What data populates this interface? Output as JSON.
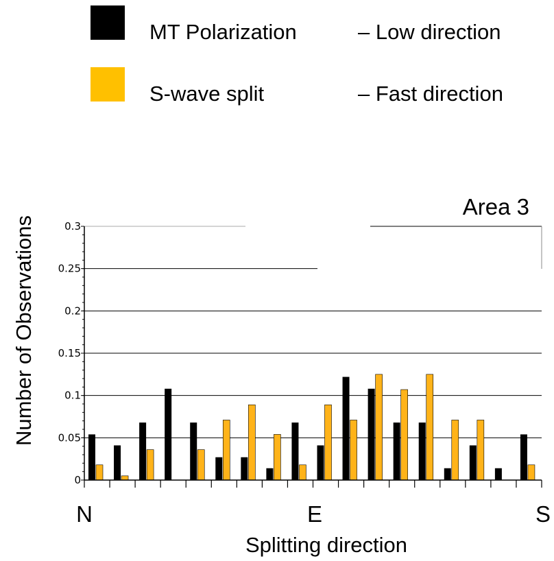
{
  "legend": {
    "items": [
      {
        "label": "MT Polarization",
        "note": "– Low direction",
        "color": "#000000"
      },
      {
        "label": "S-wave split",
        "note": "– Fast direction",
        "color": "#ffc000"
      }
    ]
  },
  "chart_data": {
    "type": "bar",
    "title": "Area 3",
    "xlabel": "Splitting direction",
    "ylabel": "Number of Observations",
    "x_tick_labels": [
      "N",
      "E",
      "S"
    ],
    "ylim": [
      0,
      0.3
    ],
    "yticks": [
      "0",
      "0.05",
      "0.1",
      "0.15",
      "0.2",
      "0.25",
      "0.3"
    ],
    "grid": true,
    "categories": [
      "1",
      "2",
      "3",
      "4",
      "5",
      "6",
      "7",
      "8",
      "9",
      "10",
      "11",
      "12",
      "13",
      "14",
      "15",
      "16",
      "17",
      "18"
    ],
    "series": [
      {
        "name": "MT Polarization",
        "color": "#000000",
        "values": [
          0.054,
          0.041,
          0.068,
          0.108,
          0.068,
          0.027,
          0.027,
          0.014,
          0.068,
          0.041,
          0.122,
          0.108,
          0.068,
          0.068,
          0.014,
          0.041,
          0.014,
          0.054
        ]
      },
      {
        "name": "S-wave split",
        "color": "#ffb319",
        "values": [
          0.018,
          0.005,
          0.036,
          0.0,
          0.036,
          0.071,
          0.089,
          0.054,
          0.018,
          0.089,
          0.071,
          0.125,
          0.107,
          0.125,
          0.071,
          0.071,
          0.0,
          0.018
        ]
      }
    ]
  }
}
